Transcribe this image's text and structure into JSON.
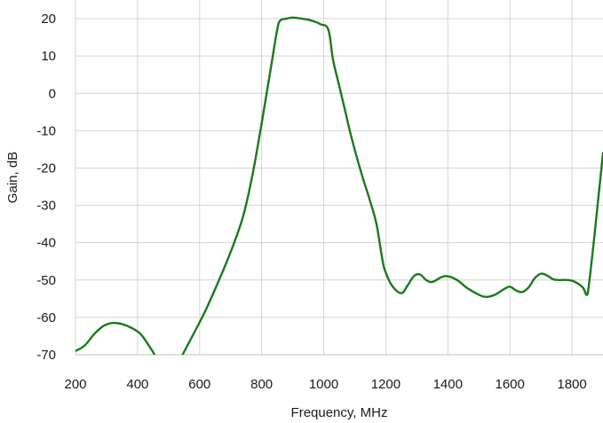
{
  "chart_data": {
    "type": "line",
    "title": "",
    "xlabel": "Frequency, MHz",
    "ylabel": "Gain, dB",
    "xlim": [
      200,
      1900
    ],
    "ylim": [
      -70,
      25
    ],
    "x_ticks": [
      200,
      400,
      600,
      800,
      1000,
      1200,
      1400,
      1600,
      1800
    ],
    "y_ticks": [
      20,
      10,
      0,
      -10,
      -20,
      -30,
      -40,
      -50,
      -60,
      -70
    ],
    "grid": true,
    "legend": "none",
    "series": [
      {
        "color": "#1a7a1a",
        "segments": [
          [
            [
              200,
              -69
            ],
            [
              230,
              -67.5
            ],
            [
              260,
              -64.5
            ],
            [
              290,
              -62.3
            ],
            [
              320,
              -61.5
            ],
            [
              350,
              -61.8
            ],
            [
              380,
              -62.8
            ],
            [
              410,
              -64.5
            ],
            [
              440,
              -68
            ],
            [
              455,
              -70
            ]
          ],
          [
            [
              545,
              -70
            ],
            [
              580,
              -64.5
            ],
            [
              620,
              -58
            ],
            [
              660,
              -50.5
            ],
            [
              700,
              -42.5
            ],
            [
              740,
              -33
            ],
            [
              770,
              -22
            ],
            [
              800,
              -8
            ],
            [
              830,
              7
            ],
            [
              850,
              17
            ],
            [
              860,
              19.5
            ],
            [
              880,
              20
            ],
            [
              900,
              20.3
            ],
            [
              930,
              20
            ],
            [
              960,
              19.5
            ],
            [
              990,
              18.5
            ],
            [
              1015,
              17
            ],
            [
              1030,
              9
            ],
            [
              1050,
              2
            ],
            [
              1070,
              -5
            ],
            [
              1090,
              -12
            ],
            [
              1120,
              -21
            ],
            [
              1150,
              -29
            ],
            [
              1170,
              -35
            ],
            [
              1190,
              -45
            ],
            [
              1200,
              -48
            ],
            [
              1220,
              -51.5
            ],
            [
              1250,
              -53.5
            ],
            [
              1270,
              -51.5
            ],
            [
              1290,
              -49
            ],
            [
              1310,
              -48.5
            ],
            [
              1330,
              -50
            ],
            [
              1350,
              -50.5
            ],
            [
              1380,
              -49.2
            ],
            [
              1400,
              -49
            ],
            [
              1430,
              -50
            ],
            [
              1460,
              -52
            ],
            [
              1490,
              -53.5
            ],
            [
              1520,
              -54.5
            ],
            [
              1550,
              -54
            ],
            [
              1580,
              -52.5
            ],
            [
              1600,
              -51.8
            ],
            [
              1620,
              -52.8
            ],
            [
              1640,
              -53.2
            ],
            [
              1660,
              -52
            ],
            [
              1680,
              -49.5
            ],
            [
              1700,
              -48.3
            ],
            [
              1720,
              -48.8
            ],
            [
              1740,
              -49.8
            ],
            [
              1760,
              -50
            ],
            [
              1790,
              -50
            ],
            [
              1810,
              -50.5
            ],
            [
              1835,
              -52
            ],
            [
              1848,
              -54
            ],
            [
              1855,
              -51
            ],
            [
              1870,
              -40
            ],
            [
              1885,
              -28
            ],
            [
              1900,
              -16
            ]
          ]
        ]
      }
    ]
  }
}
